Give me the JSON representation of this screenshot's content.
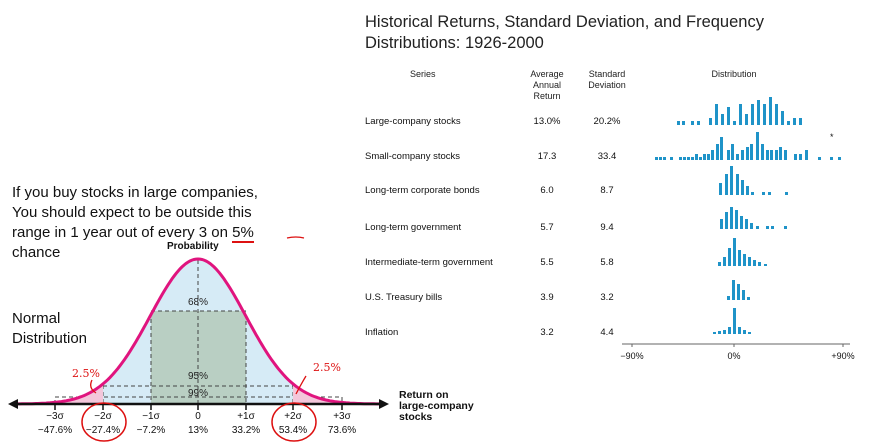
{
  "title_line1": "Historical Returns, Standard Deviation, and Frequency",
  "title_line2": "Distributions: 1926-2000",
  "table": {
    "headers": {
      "series": "Series",
      "avg_line1": "Average",
      "avg_line2": "Annual",
      "avg_line3": "Return",
      "sd_line1": "Standard",
      "sd_line2": "Deviation",
      "dist": "Distribution"
    },
    "rows": [
      {
        "name": "Large-company stocks",
        "avg": "13.0%",
        "sd": "20.2%"
      },
      {
        "name": "Small-company stocks",
        "avg": "17.3",
        "sd": "33.4"
      },
      {
        "name": "Long-term corporate bonds",
        "avg": "6.0",
        "sd": "8.7"
      },
      {
        "name": "Long-term government",
        "avg": "5.7",
        "sd": "9.4"
      },
      {
        "name": "Intermediate-term government",
        "avg": "5.5",
        "sd": "5.8"
      },
      {
        "name": "U.S. Treasury bills",
        "avg": "3.9",
        "sd": "3.2"
      },
      {
        "name": "Inflation",
        "avg": "3.2",
        "sd": "4.4"
      }
    ],
    "axis_ticks": [
      "−90%",
      "0%",
      "+90%"
    ],
    "asterisk": "*"
  },
  "annotation": {
    "line1": "If you buy stocks in large companies,",
    "line2": "You should expect to be outside this",
    "line3_pre": "range in 1 year out of every 3 on ",
    "line3_ul": "5%",
    "line4": "chance"
  },
  "normal": {
    "label_line1": "Normal",
    "label_line2": "Distribution",
    "probability": "Probability",
    "pct_68": "68%",
    "pct_95": "95%",
    "pct_99": "99%",
    "hand_left": "2.5%",
    "hand_right": "2.5%",
    "return_line1": "Return on",
    "return_line2": "large-company",
    "return_line3": "stocks",
    "sigma_labels": [
      "−3σ",
      "−2σ",
      "−1σ",
      "0",
      "+1σ",
      "+2σ",
      "+3σ"
    ],
    "return_values": [
      "−47.6%",
      "−27.4%",
      "−7.2%",
      "13%",
      "33.2%",
      "53.4%",
      "73.6%"
    ]
  },
  "colors": {
    "bar": "#1f93c8",
    "curve": "#e0147e",
    "band68": "#b9cfc3",
    "band95": "#cfe6f4",
    "ink": "#d11"
  }
}
